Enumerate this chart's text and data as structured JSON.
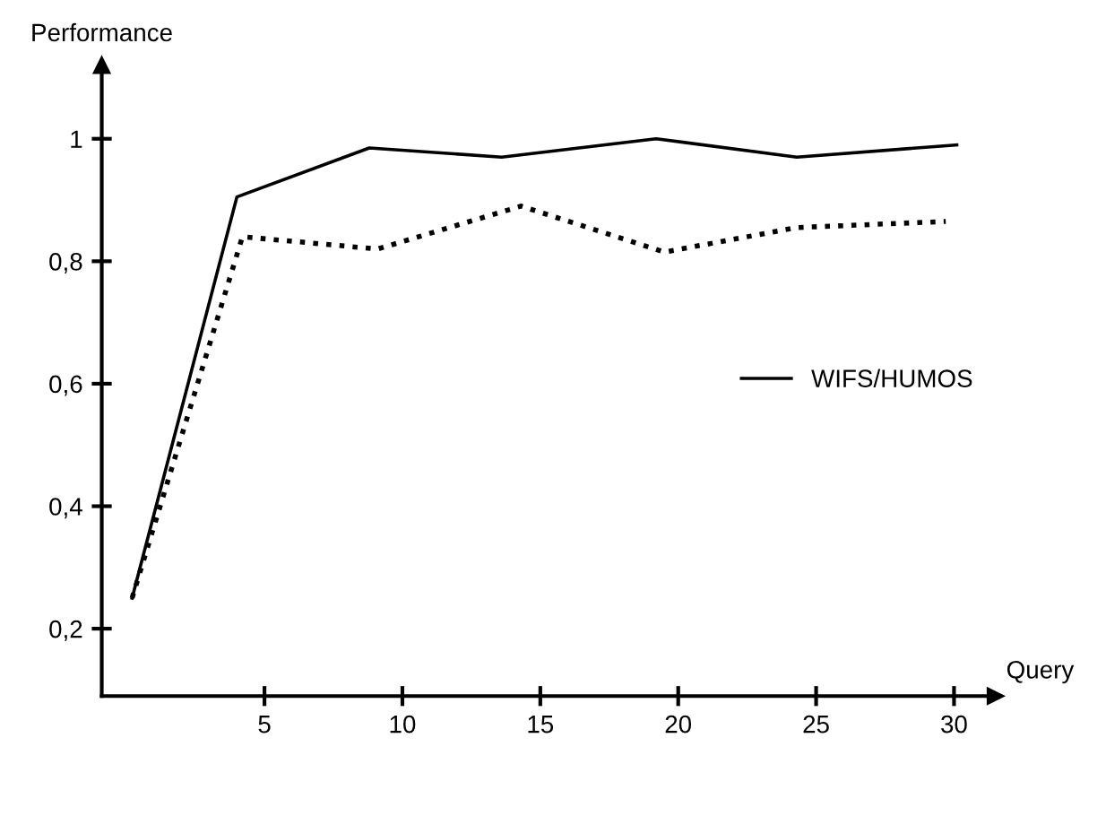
{
  "chart_data": {
    "type": "line",
    "xlabel": "Query",
    "ylabel": "Performance",
    "xlim": [
      -0.9,
      31.5
    ],
    "ylim": [
      0.09,
      1.12
    ],
    "xticks": [
      5,
      10,
      15,
      20,
      25,
      30
    ],
    "yticks": [
      {
        "value": 0.2,
        "label": "0,2"
      },
      {
        "value": 0.4,
        "label": "0,4"
      },
      {
        "value": 0.6,
        "label": "0,6"
      },
      {
        "value": 0.8,
        "label": "0,8"
      },
      1
    ],
    "grid": false,
    "legend": "right",
    "marker": "none",
    "series": [
      {
        "name": "WIFS/HUMOS",
        "color": "#000000",
        "line_style": "solid",
        "x": [
          0.2,
          4.0,
          8.8,
          13.6,
          19.2,
          24.3,
          30.1
        ],
        "values": [
          0.25,
          0.905,
          0.985,
          0.97,
          1.0,
          0.97,
          0.99
        ]
      },
      {
        "color": "#000000",
        "line_style": "dotted",
        "x": [
          0.2,
          4.2,
          9.1,
          14.3,
          19.5,
          24.3,
          29.7
        ],
        "values": [
          0.25,
          0.84,
          0.82,
          0.89,
          0.815,
          0.855,
          0.865
        ]
      }
    ]
  }
}
